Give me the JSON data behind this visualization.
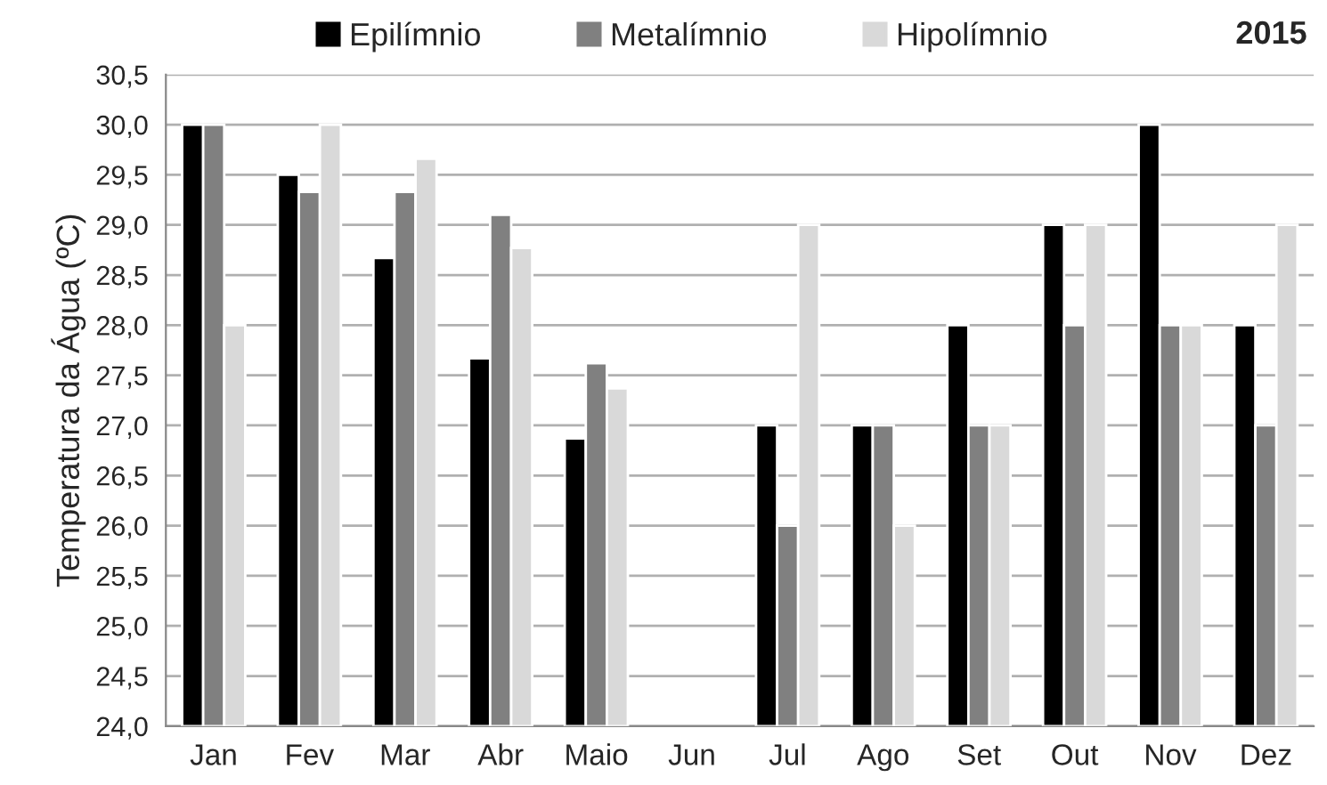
{
  "chart_data": {
    "type": "bar",
    "title": "2015",
    "ylabel": "Temperatura da Água (ºC)",
    "categories": [
      "Jan",
      "Fev",
      "Mar",
      "Abr",
      "Maio",
      "Jun",
      "Jul",
      "Ago",
      "Set",
      "Out",
      "Nov",
      "Dez"
    ],
    "series": [
      {
        "name": "Epilímnio",
        "color": "#000000",
        "values": [
          30.0,
          29.5,
          28.67,
          27.67,
          26.87,
          null,
          27.0,
          27.0,
          28.0,
          29.0,
          30.0,
          28.0
        ]
      },
      {
        "name": "Metalímnio",
        "color": "#808080",
        "values": [
          30.0,
          29.33,
          29.33,
          29.1,
          27.62,
          null,
          26.0,
          27.0,
          27.0,
          28.0,
          28.0,
          27.0
        ]
      },
      {
        "name": "Hipolímnio",
        "color": "#d9d9d9",
        "values": [
          28.0,
          30.0,
          29.66,
          28.77,
          27.37,
          null,
          29.0,
          26.0,
          27.0,
          29.0,
          28.0,
          29.0
        ]
      }
    ],
    "ylim": [
      24.0,
      30.5
    ],
    "yticks": [
      {
        "value": 24.0,
        "label": "24,0"
      },
      {
        "value": 24.5,
        "label": "24,5"
      },
      {
        "value": 25.0,
        "label": "25,0"
      },
      {
        "value": 25.5,
        "label": "25,5"
      },
      {
        "value": 26.0,
        "label": "26,0"
      },
      {
        "value": 26.5,
        "label": "26,5"
      },
      {
        "value": 27.0,
        "label": "27,0"
      },
      {
        "value": 27.5,
        "label": "27,5"
      },
      {
        "value": 28.0,
        "label": "28,0"
      },
      {
        "value": 28.5,
        "label": "28,5"
      },
      {
        "value": 29.0,
        "label": "29,0"
      },
      {
        "value": 29.5,
        "label": "29,5"
      },
      {
        "value": 30.0,
        "label": "30,0"
      },
      {
        "value": 30.5,
        "label": "30,5"
      }
    ],
    "grid": "y",
    "legend": "top"
  }
}
